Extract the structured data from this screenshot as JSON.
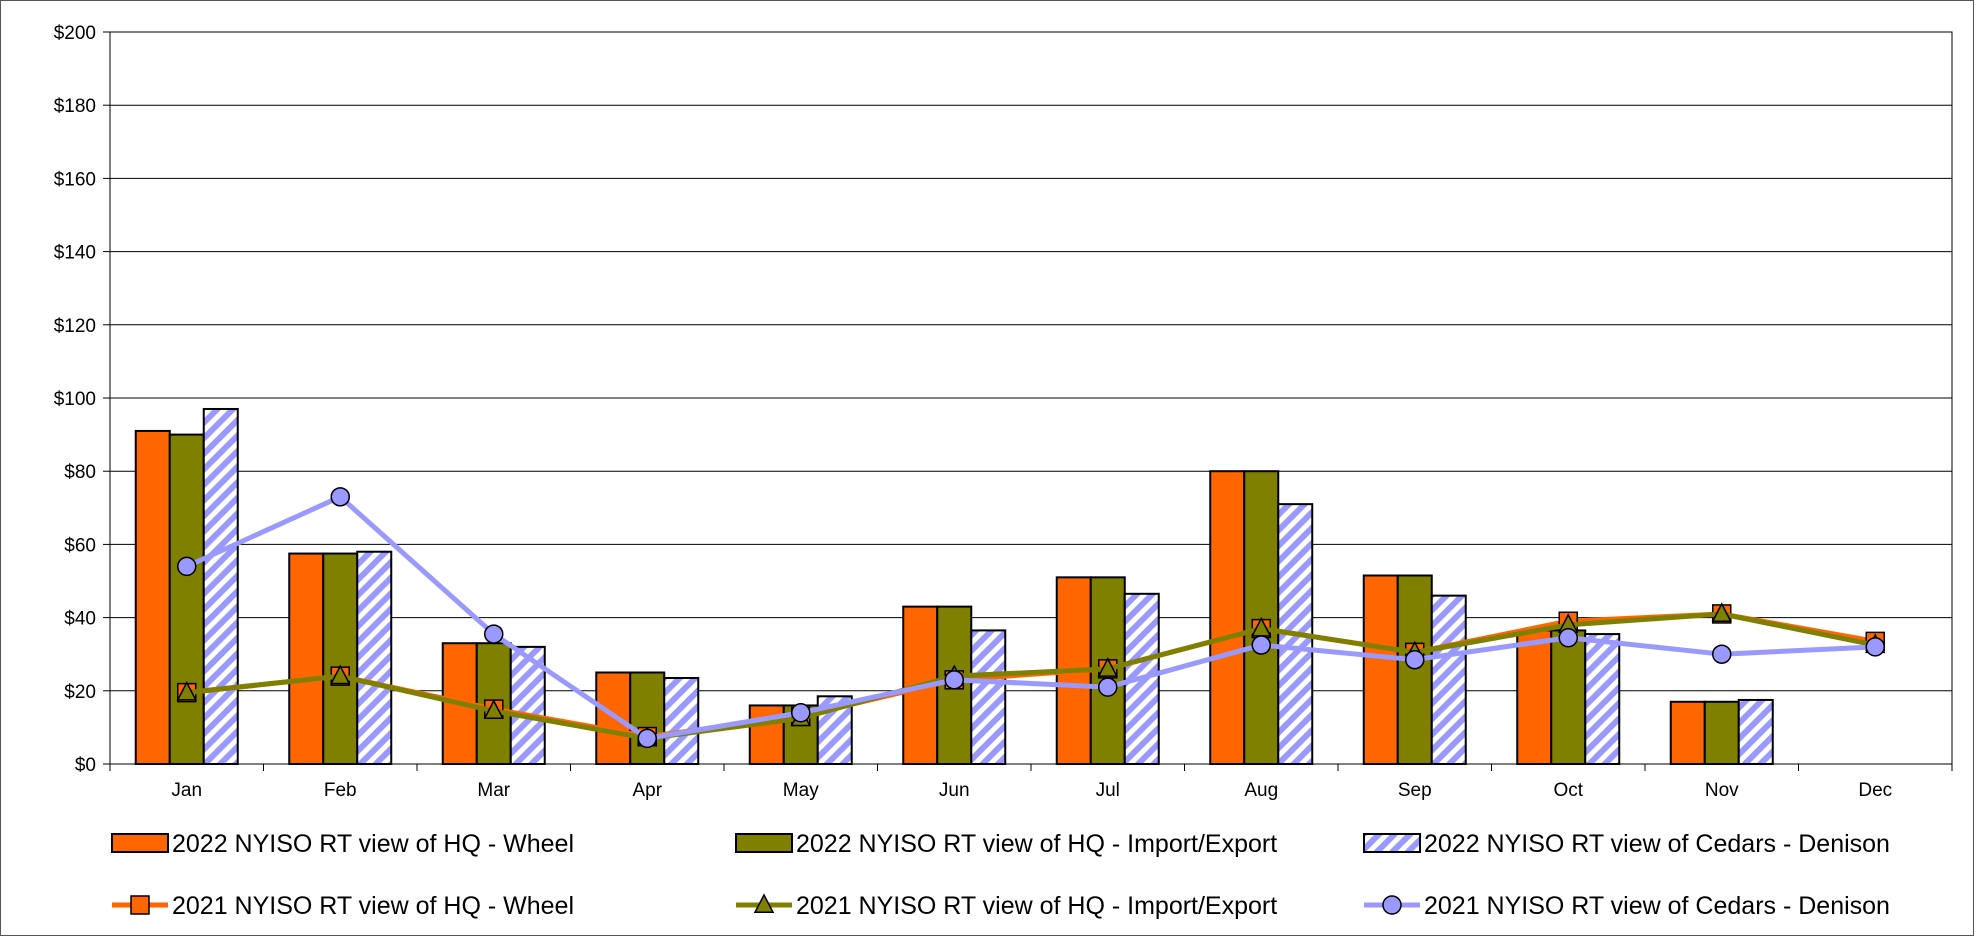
{
  "chart_data": {
    "type": "bar",
    "categories": [
      "Jan",
      "Feb",
      "Mar",
      "Apr",
      "May",
      "Jun",
      "Jul",
      "Aug",
      "Sep",
      "Oct",
      "Nov",
      "Dec"
    ],
    "ylim": [
      0,
      200
    ],
    "yticks": [
      "$0",
      "$20",
      "$40",
      "$60",
      "$80",
      "$100",
      "$120",
      "$140",
      "$160",
      "$180",
      "$200"
    ],
    "grid": true,
    "legend_position": "bottom",
    "bar_series": [
      {
        "name": "2022 NYISO RT view of HQ - Wheel",
        "color": "#FF6600",
        "pattern": "solid",
        "values": [
          91,
          57.5,
          33,
          25,
          16,
          43,
          51,
          80,
          51.5,
          36.5,
          17,
          null
        ]
      },
      {
        "name": "2022 NYISO RT view of HQ - Import/Export",
        "color": "#808000",
        "pattern": "solid",
        "values": [
          90,
          57.5,
          33,
          25,
          16,
          43,
          51,
          80,
          51.5,
          36.5,
          17,
          null
        ]
      },
      {
        "name": "2022 NYISO RT view of Cedars - Denison",
        "color": "#9999FF",
        "pattern": "diagonal-stripes",
        "values": [
          97,
          58,
          32,
          23.5,
          18.5,
          36.5,
          46.5,
          71,
          46,
          35.5,
          17.5,
          null
        ]
      }
    ],
    "line_series": [
      {
        "name": "2021 NYISO RT view of HQ - Wheel",
        "color": "#FF6600",
        "marker": "square",
        "values": [
          19.5,
          24,
          15,
          7.5,
          13,
          23,
          26,
          37,
          30.5,
          39,
          41,
          33.5
        ]
      },
      {
        "name": "2021 NYISO RT view of HQ - Import/Export",
        "color": "#808000",
        "marker": "triangle",
        "values": [
          19.5,
          24,
          14.5,
          7,
          12.5,
          24,
          26,
          37,
          30.5,
          38,
          41,
          32.5
        ]
      },
      {
        "name": "2021 NYISO RT view of Cedars - Denison",
        "color": "#9999FF",
        "marker": "circle",
        "values": [
          54,
          73,
          35.5,
          7,
          14,
          23,
          21,
          32.5,
          28.5,
          34.5,
          30,
          32
        ]
      }
    ]
  }
}
